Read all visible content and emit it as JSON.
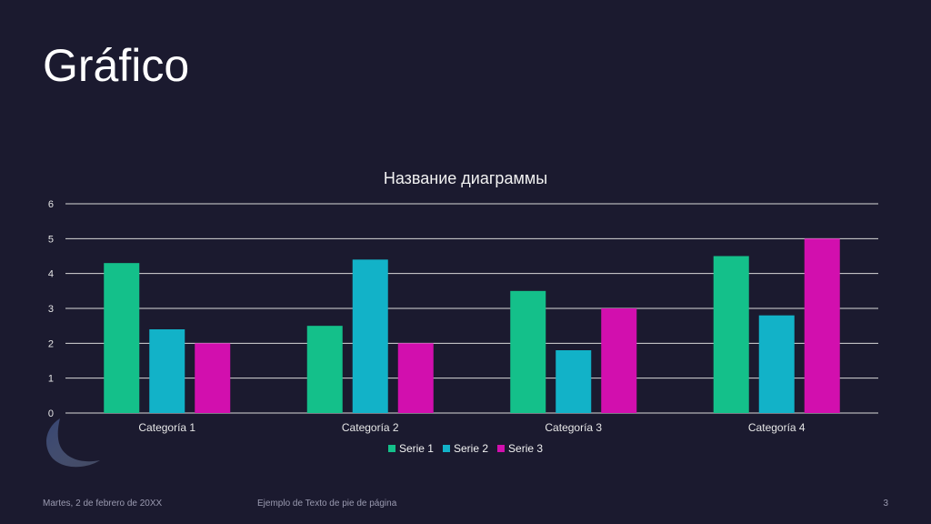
{
  "slide": {
    "title": "Gráfico",
    "footer_date": "Martes, 2 de febrero de 20XX",
    "footer_text": "Ejemplo de Texto de pie de página",
    "page_number": "3"
  },
  "chart_data": {
    "type": "bar",
    "title": "Название диаграммы",
    "categories": [
      "Categoría 1",
      "Categoría 2",
      "Categoría 3",
      "Categoría 4"
    ],
    "series": [
      {
        "name": "Serie 1",
        "values": [
          4.3,
          2.5,
          3.5,
          4.5
        ],
        "color": "#14c08a"
      },
      {
        "name": "Serie 2",
        "values": [
          2.4,
          4.4,
          1.8,
          2.8
        ],
        "color": "#12b2c8"
      },
      {
        "name": "Serie 3",
        "values": [
          2,
          2,
          3,
          5
        ],
        "color": "#d20fae"
      }
    ],
    "ylim": [
      0,
      6
    ],
    "yticks": [
      "0",
      "1",
      "2",
      "3",
      "4",
      "5",
      "6"
    ],
    "grid": true,
    "legend_position": "bottom"
  },
  "colors": {
    "background": "#1b1a2f",
    "gridline": "#d9d9d9"
  }
}
